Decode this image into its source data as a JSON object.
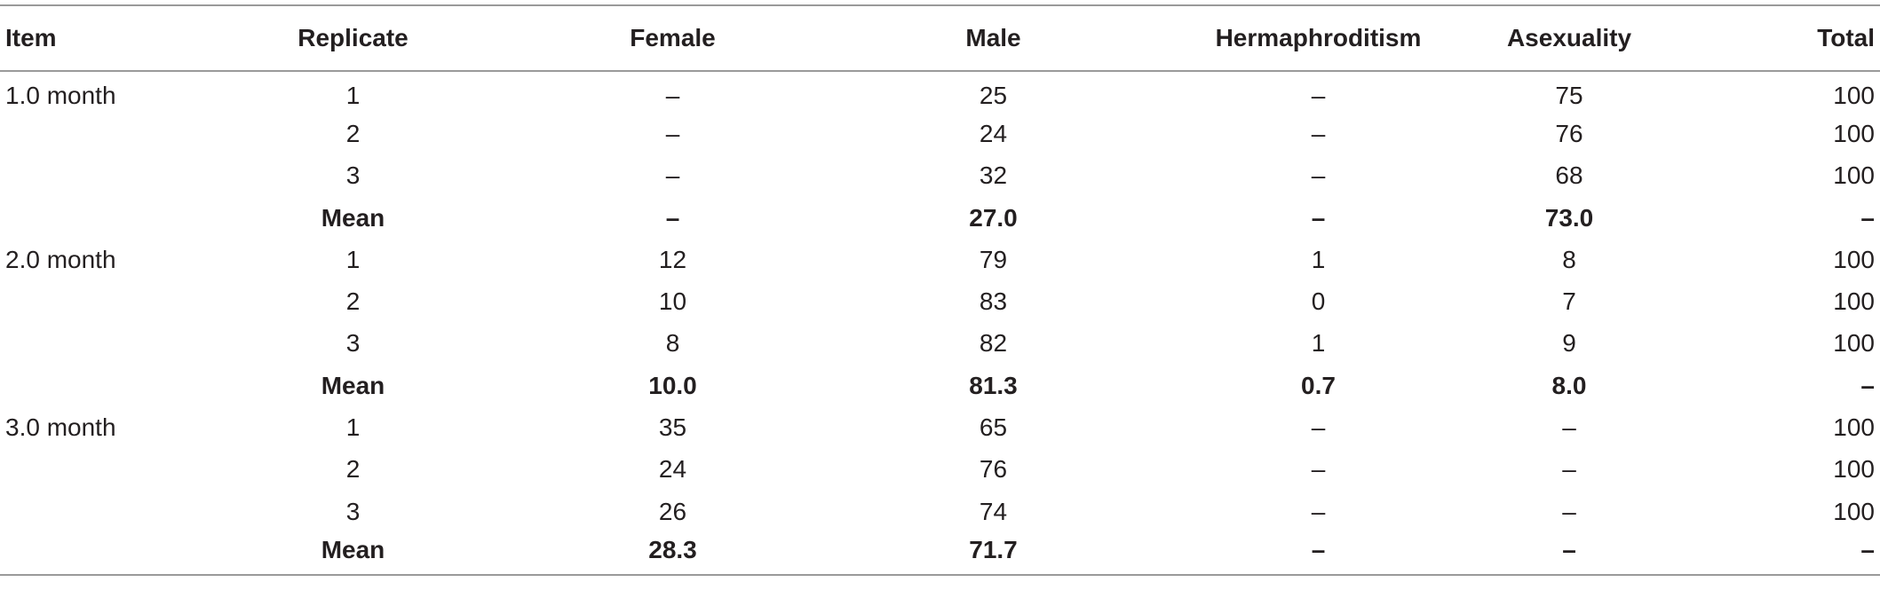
{
  "table": {
    "headers": [
      "Item",
      "Replicate",
      "Female",
      "Male",
      "Hermaphroditism",
      "Asexuality",
      "Total"
    ],
    "rows": [
      [
        "1.0 month",
        "1",
        "–",
        "25",
        "–",
        "75",
        "100"
      ],
      [
        "",
        "2",
        "–",
        "24",
        "–",
        "76",
        "100"
      ],
      [
        "",
        "3",
        "–",
        "32",
        "–",
        "68",
        "100"
      ],
      [
        "",
        "Mean",
        "–",
        "27.0",
        "–",
        "73.0",
        "–"
      ],
      [
        "2.0 month",
        "1",
        "12",
        "79",
        "1",
        "8",
        "100"
      ],
      [
        "",
        "2",
        "10",
        "83",
        "0",
        "7",
        "100"
      ],
      [
        "",
        "3",
        "8",
        "82",
        "1",
        "9",
        "100"
      ],
      [
        "",
        "Mean",
        "10.0",
        "81.3",
        "0.7",
        "8.0",
        "–"
      ],
      [
        "3.0 month",
        "1",
        "35",
        "65",
        "–",
        "–",
        "100"
      ],
      [
        "",
        "2",
        "24",
        "76",
        "–",
        "–",
        "100"
      ],
      [
        "",
        "3",
        "26",
        "74",
        "–",
        "–",
        "100"
      ],
      [
        "",
        "Mean",
        "28.3",
        "71.7",
        "–",
        "–",
        "–"
      ]
    ]
  }
}
